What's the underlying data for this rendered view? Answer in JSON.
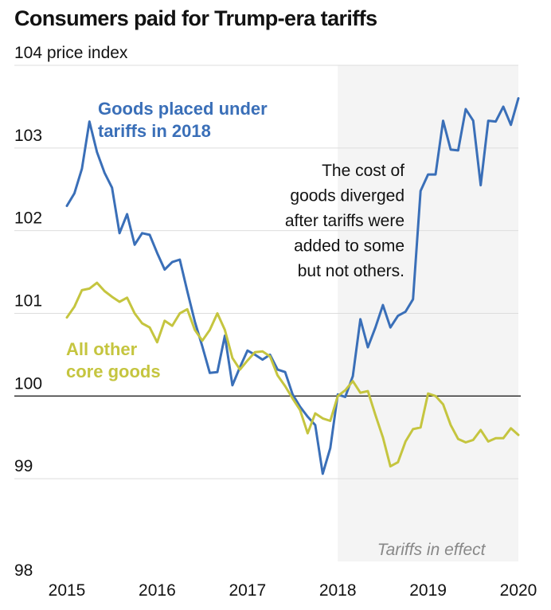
{
  "title": "Consumers paid for Trump-era tariffs",
  "chart_data": {
    "type": "line",
    "title": "Consumers paid for Trump-era tariffs",
    "ylabel": "price index",
    "ylim": [
      98,
      104
    ],
    "yticks": [
      98,
      99,
      100,
      101,
      102,
      103,
      104
    ],
    "xlim": [
      2015,
      2020
    ],
    "xticks": [
      2015,
      2016,
      2017,
      2018,
      2019,
      2020
    ],
    "reference_line": 100,
    "grid": true,
    "shaded_region": {
      "x_start": 2018,
      "x_end": 2020,
      "label": "Tariffs in effect"
    },
    "annotation": [
      "The cost of",
      "goods diverged",
      "after tariffs were",
      "added to some",
      "but not others."
    ],
    "colors": {
      "tariffed": "#3a6fb8",
      "other": "#c5c53f",
      "shade": "#f4f4f4",
      "grid": "#dddddd",
      "reference": "#222222"
    },
    "series": [
      {
        "name": "Goods placed under tariffs in 2018",
        "label_lines": [
          "Goods placed under",
          "tariffs in 2018"
        ],
        "color": "#3a6fb8",
        "x": [
          2015.0,
          2015.083,
          2015.167,
          2015.25,
          2015.333,
          2015.417,
          2015.5,
          2015.583,
          2015.667,
          2015.75,
          2015.833,
          2015.917,
          2016.0,
          2016.083,
          2016.167,
          2016.25,
          2016.333,
          2016.417,
          2016.5,
          2016.583,
          2016.667,
          2016.75,
          2016.833,
          2016.917,
          2017.0,
          2017.083,
          2017.167,
          2017.25,
          2017.333,
          2017.417,
          2017.5,
          2017.583,
          2017.667,
          2017.75,
          2017.833,
          2017.917,
          2018.0,
          2018.083,
          2018.167,
          2018.25,
          2018.333,
          2018.417,
          2018.5,
          2018.583,
          2018.667,
          2018.75,
          2018.833,
          2018.917,
          2019.0,
          2019.083,
          2019.167,
          2019.25,
          2019.333,
          2019.417,
          2019.5,
          2019.583,
          2019.667,
          2019.75,
          2019.833,
          2019.917,
          2020.0
        ],
        "values": [
          102.3,
          102.45,
          102.75,
          103.32,
          102.95,
          102.7,
          102.52,
          101.97,
          102.2,
          101.83,
          101.97,
          101.95,
          101.73,
          101.53,
          101.62,
          101.65,
          101.27,
          100.9,
          100.6,
          100.28,
          100.29,
          100.73,
          100.13,
          100.35,
          100.55,
          100.5,
          100.44,
          100.5,
          100.32,
          100.29,
          100.02,
          99.87,
          99.75,
          99.65,
          99.06,
          99.37,
          100.02,
          99.99,
          100.24,
          100.93,
          100.59,
          100.83,
          101.1,
          100.83,
          100.97,
          101.02,
          101.17,
          102.48,
          102.68,
          102.68,
          103.33,
          102.98,
          102.97,
          103.47,
          103.33,
          102.55,
          103.33,
          103.32,
          103.5,
          103.28,
          103.6
        ]
      },
      {
        "name": "All other core goods",
        "label_lines": [
          "All other",
          "core goods"
        ],
        "color": "#c5c53f",
        "x": [
          2015.0,
          2015.083,
          2015.167,
          2015.25,
          2015.333,
          2015.417,
          2015.5,
          2015.583,
          2015.667,
          2015.75,
          2015.833,
          2015.917,
          2016.0,
          2016.083,
          2016.167,
          2016.25,
          2016.333,
          2016.417,
          2016.5,
          2016.583,
          2016.667,
          2016.75,
          2016.833,
          2016.917,
          2017.0,
          2017.083,
          2017.167,
          2017.25,
          2017.333,
          2017.417,
          2017.5,
          2017.583,
          2017.667,
          2017.75,
          2017.833,
          2017.917,
          2018.0,
          2018.083,
          2018.167,
          2018.25,
          2018.333,
          2018.417,
          2018.5,
          2018.583,
          2018.667,
          2018.75,
          2018.833,
          2018.917,
          2019.0,
          2019.083,
          2019.167,
          2019.25,
          2019.333,
          2019.417,
          2019.5,
          2019.583,
          2019.667,
          2019.75,
          2019.833,
          2019.917,
          2020.0
        ],
        "values": [
          100.95,
          101.08,
          101.28,
          101.3,
          101.37,
          101.27,
          101.2,
          101.14,
          101.19,
          101.0,
          100.88,
          100.83,
          100.65,
          100.91,
          100.85,
          101.0,
          101.05,
          100.8,
          100.67,
          100.8,
          101.0,
          100.8,
          100.46,
          100.32,
          100.43,
          100.53,
          100.54,
          100.48,
          100.25,
          100.12,
          99.97,
          99.83,
          99.55,
          99.79,
          99.73,
          99.7,
          100.0,
          100.07,
          100.18,
          100.04,
          100.06,
          99.77,
          99.5,
          99.15,
          99.2,
          99.45,
          99.6,
          99.62,
          100.03,
          100.0,
          99.9,
          99.65,
          99.48,
          99.44,
          99.47,
          99.59,
          99.45,
          99.49,
          99.49,
          99.61,
          99.53
        ]
      }
    ]
  }
}
